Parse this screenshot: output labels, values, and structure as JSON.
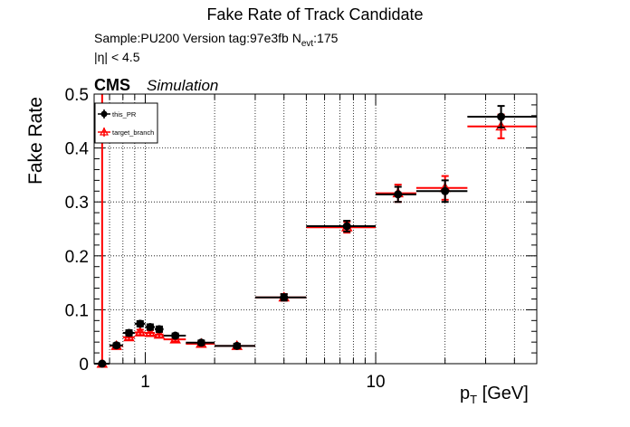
{
  "header": {
    "title": "Fake Rate of Track Candidate",
    "sample_prefix": "Sample:PU200   Version tag:97e3fb  N",
    "sample_sub": "evt",
    "sample_suffix": ":175",
    "eta_cut": "|η| < 4.5",
    "cms": "CMS",
    "simulation": "Simulation"
  },
  "axes": {
    "ylabel": "Fake Rate",
    "xlabel_main": "p",
    "xlabel_sub": "T",
    "xlabel_unit": " [GeV]"
  },
  "chart_data": {
    "type": "scatter",
    "title": "Fake Rate of Track Candidate",
    "xlabel": "p_T [GeV]",
    "ylabel": "Fake Rate",
    "xscale": "log",
    "xlim": [
      0.6,
      50
    ],
    "ylim": [
      0,
      0.5
    ],
    "grid": true,
    "legend": "top-left",
    "x_ticks": [
      1,
      10
    ],
    "x_tick_labels": [
      "1",
      "10"
    ],
    "y_ticks": [
      0,
      0.1,
      0.2,
      0.3,
      0.4,
      0.5
    ],
    "y_tick_labels": [
      "0",
      "0.1",
      "0.2",
      "0.3",
      "0.4",
      "0.5"
    ],
    "series": [
      {
        "name": "this_PR",
        "color": "#000000",
        "marker": "circle",
        "points": [
          {
            "x": 0.65,
            "xlo": 0.6,
            "xhi": 0.7,
            "y": 0.0,
            "yerr": 0.0
          },
          {
            "x": 0.75,
            "xlo": 0.7,
            "xhi": 0.8,
            "y": 0.034,
            "yerr": 0.004
          },
          {
            "x": 0.85,
            "xlo": 0.8,
            "xhi": 0.9,
            "y": 0.057,
            "yerr": 0.005
          },
          {
            "x": 0.95,
            "xlo": 0.9,
            "xhi": 1.0,
            "y": 0.074,
            "yerr": 0.005
          },
          {
            "x": 1.05,
            "xlo": 1.0,
            "xhi": 1.1,
            "y": 0.068,
            "yerr": 0.005
          },
          {
            "x": 1.15,
            "xlo": 1.1,
            "xhi": 1.2,
            "y": 0.064,
            "yerr": 0.005
          },
          {
            "x": 1.35,
            "xlo": 1.2,
            "xhi": 1.5,
            "y": 0.052,
            "yerr": 0.004
          },
          {
            "x": 1.75,
            "xlo": 1.5,
            "xhi": 2.0,
            "y": 0.039,
            "yerr": 0.004
          },
          {
            "x": 2.5,
            "xlo": 2.0,
            "xhi": 3.0,
            "y": 0.033,
            "yerr": 0.004
          },
          {
            "x": 4.0,
            "xlo": 3.0,
            "xhi": 5.0,
            "y": 0.123,
            "yerr": 0.006
          },
          {
            "x": 7.5,
            "xlo": 5.0,
            "xhi": 10.0,
            "y": 0.255,
            "yerr": 0.01
          },
          {
            "x": 12.5,
            "xlo": 10.0,
            "xhi": 15.0,
            "y": 0.314,
            "yerr": 0.014
          },
          {
            "x": 20.0,
            "xlo": 15.0,
            "xhi": 25.0,
            "y": 0.32,
            "yerr": 0.02
          },
          {
            "x": 35.0,
            "xlo": 25.0,
            "xhi": 50.0,
            "y": 0.458,
            "yerr": 0.02
          }
        ]
      },
      {
        "name": "target_branch",
        "color": "#ff0000",
        "marker": "open-triangle",
        "points": [
          {
            "x": 0.65,
            "xlo": 0.6,
            "xhi": 0.7,
            "y": 0.0,
            "yerr": 0.5
          },
          {
            "x": 0.75,
            "xlo": 0.7,
            "xhi": 0.8,
            "y": 0.033,
            "yerr": 0.004
          },
          {
            "x": 0.85,
            "xlo": 0.8,
            "xhi": 0.9,
            "y": 0.049,
            "yerr": 0.005
          },
          {
            "x": 0.95,
            "xlo": 0.9,
            "xhi": 1.0,
            "y": 0.058,
            "yerr": 0.005
          },
          {
            "x": 1.05,
            "xlo": 1.0,
            "xhi": 1.1,
            "y": 0.057,
            "yerr": 0.005
          },
          {
            "x": 1.15,
            "xlo": 1.1,
            "xhi": 1.2,
            "y": 0.054,
            "yerr": 0.005
          },
          {
            "x": 1.35,
            "xlo": 1.2,
            "xhi": 1.5,
            "y": 0.045,
            "yerr": 0.004
          },
          {
            "x": 1.75,
            "xlo": 1.5,
            "xhi": 2.0,
            "y": 0.037,
            "yerr": 0.004
          },
          {
            "x": 2.5,
            "xlo": 2.0,
            "xhi": 3.0,
            "y": 0.033,
            "yerr": 0.004
          },
          {
            "x": 4.0,
            "xlo": 3.0,
            "xhi": 5.0,
            "y": 0.123,
            "yerr": 0.006
          },
          {
            "x": 7.5,
            "xlo": 5.0,
            "xhi": 10.0,
            "y": 0.253,
            "yerr": 0.01
          },
          {
            "x": 12.5,
            "xlo": 10.0,
            "xhi": 15.0,
            "y": 0.316,
            "yerr": 0.016
          },
          {
            "x": 20.0,
            "xlo": 15.0,
            "xhi": 25.0,
            "y": 0.326,
            "yerr": 0.022
          },
          {
            "x": 35.0,
            "xlo": 25.0,
            "xhi": 50.0,
            "y": 0.44,
            "yerr": 0.022
          }
        ]
      }
    ]
  }
}
